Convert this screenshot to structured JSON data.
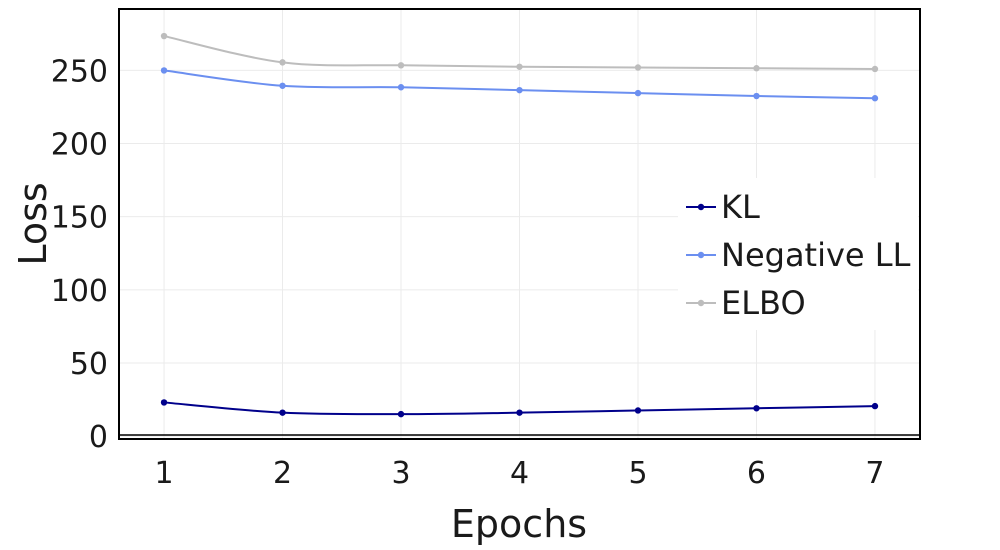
{
  "chart_data": {
    "type": "line",
    "title": "",
    "xlabel": "Epochs",
    "ylabel": "Loss",
    "x": [
      1,
      2,
      3,
      4,
      5,
      6,
      7
    ],
    "xlim": [
      0.62,
      7.38
    ],
    "ylim": [
      -2,
      292
    ],
    "xticks": [
      1,
      2,
      3,
      4,
      5,
      6,
      7
    ],
    "yticks": [
      0,
      50,
      100,
      150,
      200,
      250
    ],
    "grid": true,
    "legend_position": "right",
    "series": [
      {
        "name": "KL",
        "color": "#00008b",
        "values": [
          23,
          16,
          15,
          16,
          17.5,
          19,
          20.5
        ]
      },
      {
        "name": "Negative LL",
        "color": "#6b8ff0",
        "values": [
          250,
          239.5,
          238.5,
          236.5,
          234.5,
          232.5,
          231
        ]
      },
      {
        "name": "ELBO",
        "color": "#bdbdbd",
        "values": [
          273.5,
          255.5,
          253.5,
          252.5,
          252,
          251.5,
          251
        ]
      }
    ]
  }
}
